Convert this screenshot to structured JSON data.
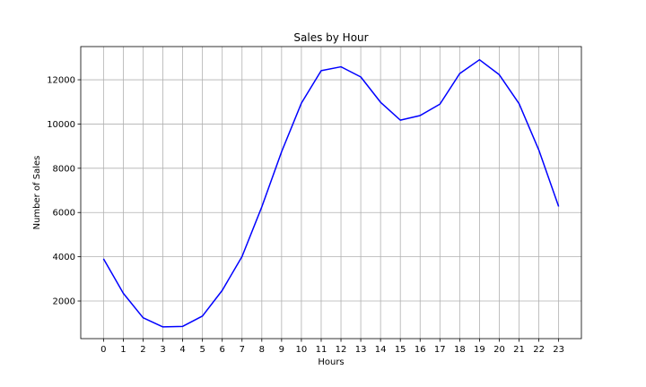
{
  "chart_data": {
    "type": "line",
    "title": "Sales by Hour",
    "xlabel": "Hours",
    "ylabel": "Number of Sales",
    "x": [
      0,
      1,
      2,
      3,
      4,
      5,
      6,
      7,
      8,
      9,
      10,
      11,
      12,
      13,
      14,
      15,
      16,
      17,
      18,
      19,
      20,
      21,
      22,
      23
    ],
    "series": [
      {
        "values": [
          3910,
          2350,
          1243,
          831,
          854,
          1321,
          2482,
          4011,
          6256,
          8748,
          10944,
          12411,
          12587,
          12129,
          10984,
          10175,
          10384,
          10899,
          12280,
          12905,
          12228,
          10921,
          8822,
          6275
        ],
        "color": "#0000ff"
      }
    ],
    "xlim": [
      -1.15,
      24.15
    ],
    "ylim": [
      300,
      13500
    ],
    "xticks": [
      "0",
      "1",
      "2",
      "3",
      "4",
      "5",
      "6",
      "7",
      "8",
      "9",
      "10",
      "11",
      "12",
      "13",
      "14",
      "15",
      "16",
      "17",
      "18",
      "19",
      "20",
      "21",
      "22",
      "23"
    ],
    "yticks": [
      "2000",
      "4000",
      "6000",
      "8000",
      "10000",
      "12000"
    ],
    "ytick_values": [
      2000,
      4000,
      6000,
      8000,
      10000,
      12000
    ],
    "grid": true,
    "legend": "none"
  }
}
